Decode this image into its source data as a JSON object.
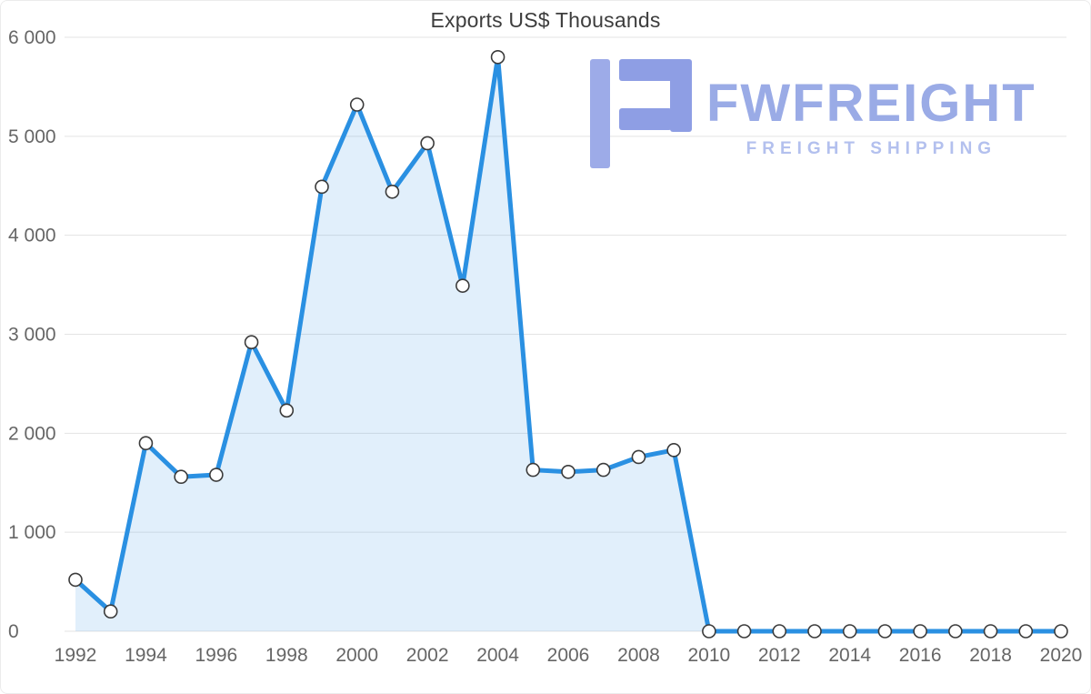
{
  "chart_data": {
    "type": "area",
    "title": "Exports US$ Thousands",
    "xlabel": "",
    "ylabel": "",
    "x": [
      1992,
      1993,
      1994,
      1995,
      1996,
      1997,
      1998,
      1999,
      2000,
      2001,
      2002,
      2003,
      2004,
      2005,
      2006,
      2007,
      2008,
      2009,
      2010,
      2011,
      2012,
      2013,
      2014,
      2015,
      2016,
      2017,
      2018,
      2019,
      2020
    ],
    "values": [
      520,
      200,
      1900,
      1560,
      1580,
      2920,
      2230,
      4490,
      5320,
      4440,
      4930,
      3490,
      5800,
      1630,
      1610,
      1630,
      1760,
      1830,
      0,
      0,
      0,
      0,
      0,
      0,
      0,
      0,
      0,
      0,
      0
    ],
    "ylim": [
      0,
      6000
    ],
    "y_ticks": [
      0,
      1000,
      2000,
      3000,
      4000,
      5000,
      6000
    ],
    "y_tick_labels": [
      "0",
      "1 000",
      "2 000",
      "3 000",
      "4 000",
      "5 000",
      "6 000"
    ],
    "x_tick_step_years": 2,
    "grid": true,
    "legend": "none",
    "line_color": "#2a90e2",
    "fill_color": "rgba(42,144,226,0.14)",
    "marker_fill": "#ffffff",
    "marker_stroke": "#3b3b3b",
    "grid_color": "#e3e3e3",
    "tick_color": "#666666"
  },
  "watermark": {
    "brand": "FWFREIGHT",
    "tagline": "FREIGHT SHIPPING",
    "brand_color": "#9aabe6",
    "tagline_color": "#b3c0ee",
    "mark_color_left": "#9dabe8",
    "mark_color_right": "#8e9ee4"
  }
}
